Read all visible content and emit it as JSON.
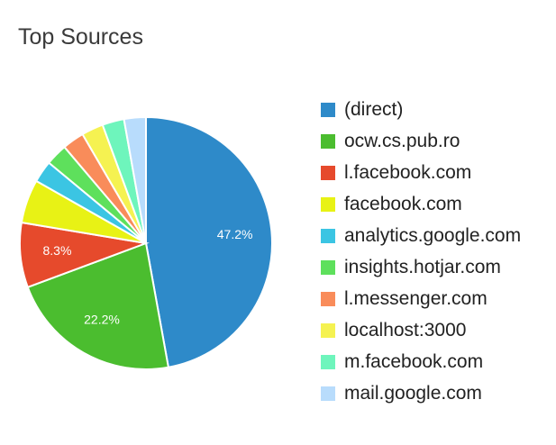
{
  "card": {
    "title": "Top Sources"
  },
  "chart_data": {
    "type": "pie",
    "title": "Top Sources",
    "legend_position": "right",
    "slices": [
      {
        "label": "(direct)",
        "value": 47.2,
        "color": "#2e8ac9",
        "data_label": "47.2%"
      },
      {
        "label": "ocw.cs.pub.ro",
        "value": 22.2,
        "color": "#4bbd2f",
        "data_label": "22.2%"
      },
      {
        "label": "l.facebook.com",
        "value": 8.3,
        "color": "#e64a2c",
        "data_label": "8.3%"
      },
      {
        "label": "facebook.com",
        "value": 5.6,
        "color": "#e8f215",
        "data_label": ""
      },
      {
        "label": "analytics.google.com",
        "value": 2.8,
        "color": "#3bc5e3",
        "data_label": ""
      },
      {
        "label": "insights.hotjar.com",
        "value": 2.8,
        "color": "#5ee05c",
        "data_label": ""
      },
      {
        "label": "l.messenger.com",
        "value": 2.8,
        "color": "#f98c5a",
        "data_label": ""
      },
      {
        "label": "localhost:3000",
        "value": 2.8,
        "color": "#f5f251",
        "data_label": ""
      },
      {
        "label": "m.facebook.com",
        "value": 2.8,
        "color": "#6ef5bc",
        "data_label": ""
      },
      {
        "label": "mail.google.com",
        "value": 2.8,
        "color": "#b8dcfc",
        "data_label": ""
      }
    ]
  }
}
